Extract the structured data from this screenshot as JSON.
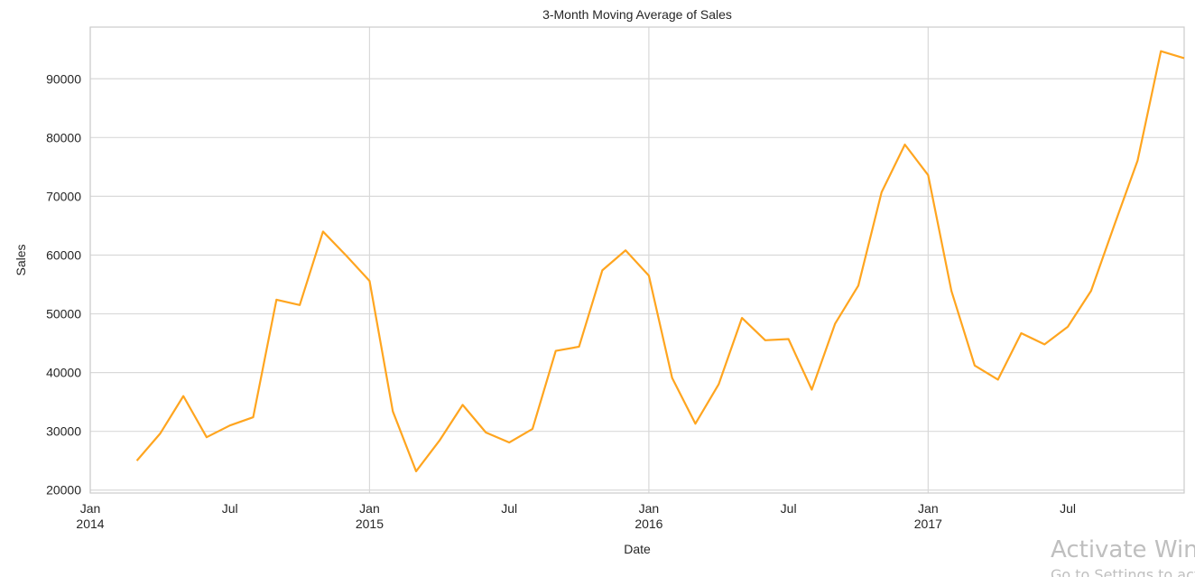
{
  "chart_data": {
    "type": "line",
    "title": "3-Month Moving Average of Sales",
    "x_label": "Date",
    "y_label": "Sales",
    "x": [
      "2014-03",
      "2014-04",
      "2014-05",
      "2014-06",
      "2014-07",
      "2014-08",
      "2014-09",
      "2014-10",
      "2014-11",
      "2014-12",
      "2015-01",
      "2015-02",
      "2015-03",
      "2015-04",
      "2015-05",
      "2015-06",
      "2015-07",
      "2015-08",
      "2015-09",
      "2015-10",
      "2015-11",
      "2015-12",
      "2016-01",
      "2016-02",
      "2016-03",
      "2016-04",
      "2016-05",
      "2016-06",
      "2016-07",
      "2016-08",
      "2016-09",
      "2016-10",
      "2016-11",
      "2016-12",
      "2017-01",
      "2017-02",
      "2017-03",
      "2017-04",
      "2017-05",
      "2017-06",
      "2017-07",
      "2017-08",
      "2017-09",
      "2017-10",
      "2017-11",
      "2017-12"
    ],
    "series": [
      {
        "name": "Sales",
        "color": "#ffa51f",
        "values": [
          25000,
          29600,
          36000,
          29000,
          31000,
          32400,
          52400,
          51500,
          64000,
          59900,
          55600,
          33400,
          23200,
          28400,
          34500,
          29800,
          28100,
          30400,
          43700,
          44400,
          57400,
          60800,
          56500,
          39100,
          31300,
          38000,
          49300,
          45500,
          45700,
          37100,
          48300,
          54800,
          70700,
          78800,
          73600,
          53900,
          41200,
          38800,
          46700,
          44800,
          47800,
          53900,
          65100,
          76100,
          94700,
          93500
        ]
      }
    ],
    "xlim": [
      "2014-01",
      "2017-12"
    ],
    "xticks": [
      {
        "value": "2014-01",
        "label": "Jan\n2014"
      },
      {
        "value": "2014-07",
        "label": "Jul"
      },
      {
        "value": "2015-01",
        "label": "Jan\n2015"
      },
      {
        "value": "2015-07",
        "label": "Jul"
      },
      {
        "value": "2016-01",
        "label": "Jan\n2016"
      },
      {
        "value": "2016-07",
        "label": "Jul"
      },
      {
        "value": "2017-01",
        "label": "Jan\n2017"
      },
      {
        "value": "2017-07",
        "label": "Jul"
      }
    ],
    "ylim": [
      19500,
      98800
    ],
    "yticks": [
      20000,
      30000,
      40000,
      50000,
      60000,
      70000,
      80000,
      90000
    ],
    "grid": true
  },
  "watermark": {
    "title": "Activate Windows",
    "subtitle": "Go to Settings to activate Windows."
  }
}
